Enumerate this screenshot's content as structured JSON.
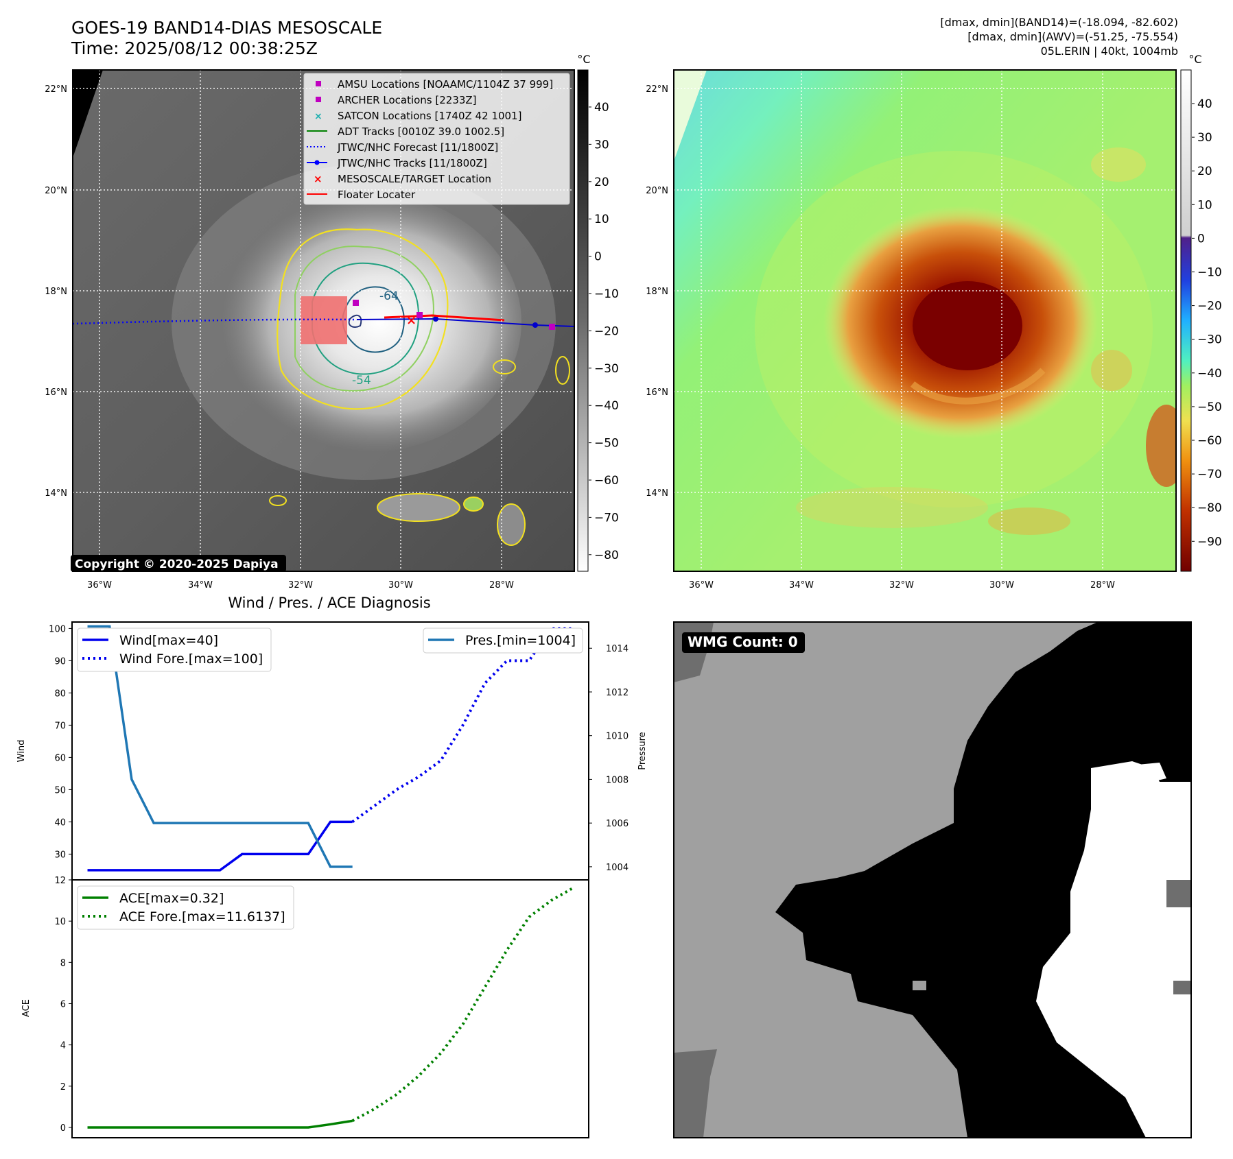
{
  "header": {
    "title_line1": "GOES-19 BAND14-DIAS MESOSCALE",
    "title_line2": "Time: 2025/08/12 00:38:25Z",
    "info_line1": "[dmax, dmin](BAND14)=(-18.094, -82.602)",
    "info_line2": "[dmax, dmin](AWV)=(-51.25, -75.554)",
    "info_line3": "05L.ERIN | 40kt, 1004mb"
  },
  "maps": {
    "lat_ticks": [
      "22°N",
      "20°N",
      "18°N",
      "16°N",
      "14°N"
    ],
    "lon_ticks": [
      "36°W",
      "34°W",
      "32°W",
      "30°W",
      "28°W"
    ],
    "copyright": "Copyright © 2020-2025 Dapiya",
    "contour_labels": [
      "-64",
      "-54"
    ],
    "legend": [
      {
        "label": "AMSU Locations [NOAAMC/1104Z 37 999]",
        "marker": "square",
        "color": "#c000c0"
      },
      {
        "label": "ARCHER Locations [2233Z]",
        "marker": "square",
        "color": "#c000c0"
      },
      {
        "label": "SATCON Locations [1740Z 42 1001]",
        "marker": "x",
        "color": "#20b0b0"
      },
      {
        "label": "ADT Tracks [0010Z 39.0 1002.5]",
        "marker": "line",
        "color": "#008000"
      },
      {
        "label": "JTWC/NHC Forecast [11/1800Z]",
        "marker": "dotted",
        "color": "#0000ff"
      },
      {
        "label": "JTWC/NHC Tracks [11/1800Z]",
        "marker": "line-dot",
        "color": "#0000ff"
      },
      {
        "label": "MESOSCALE/TARGET Location",
        "marker": "x",
        "color": "#ff0000"
      },
      {
        "label": "Floater Locater",
        "marker": "line",
        "color": "#ff0000"
      }
    ],
    "colorbar1": {
      "unit": "°C",
      "ticks": [
        "40",
        "30",
        "20",
        "10",
        "0",
        "−10",
        "−20",
        "−30",
        "−40",
        "−50",
        "−60",
        "−70",
        "−80"
      ]
    },
    "colorbar2": {
      "unit": "°C",
      "ticks": [
        "40",
        "30",
        "20",
        "10",
        "0",
        "−10",
        "−20",
        "−30",
        "−40",
        "−50",
        "−60",
        "−70",
        "−80",
        "−90"
      ]
    }
  },
  "wmg": {
    "label": "WMG Count: 0"
  },
  "chart_data": [
    {
      "type": "line",
      "title": "Wind / Pres. / ACE Diagnosis",
      "ylabel": "Wind",
      "y2label": "Pressure",
      "ylim": [
        22,
        102
      ],
      "y2lim": [
        1003.4,
        1015.2
      ],
      "yticks": [
        "100",
        "90",
        "80",
        "70",
        "60",
        "50",
        "40",
        "30"
      ],
      "y2ticks": [
        "1014",
        "1012",
        "1010",
        "1008",
        "1006",
        "1004"
      ],
      "x": [
        0,
        1,
        2,
        3,
        4,
        5,
        6,
        7,
        8,
        9,
        10,
        11,
        12,
        13,
        14,
        15,
        16,
        17,
        18,
        19,
        20,
        21,
        22
      ],
      "series": [
        {
          "name": "Wind[max=40]",
          "axis": "left",
          "style": "solid",
          "color": "#0000ee",
          "x": [
            0,
            1,
            2,
            3,
            4,
            5,
            6,
            7,
            8,
            9,
            10,
            11,
            12
          ],
          "values": [
            25,
            25,
            25,
            25,
            25,
            25,
            25,
            30,
            30,
            30,
            30,
            40,
            40
          ]
        },
        {
          "name": "Wind Fore.[max=100]",
          "axis": "left",
          "style": "dotted",
          "color": "#0000ee",
          "x": [
            12,
            13,
            14,
            15,
            16,
            17,
            18,
            19,
            20,
            21,
            22
          ],
          "values": [
            40,
            45,
            50,
            54,
            59,
            70,
            83,
            90,
            90,
            100,
            100
          ]
        },
        {
          "name": "Pres.[min=1004]",
          "axis": "right",
          "style": "solid",
          "color": "#1f77b4",
          "x": [
            0,
            1,
            2,
            3,
            4,
            5,
            6,
            7,
            8,
            9,
            10,
            11,
            12
          ],
          "values": [
            1015,
            1015,
            1008,
            1006,
            1006,
            1006,
            1006,
            1006,
            1006,
            1006,
            1006,
            1004,
            1004
          ]
        }
      ]
    },
    {
      "type": "line",
      "ylabel": "ACE",
      "ylim": [
        -0.5,
        12
      ],
      "yticks": [
        "12",
        "10",
        "8",
        "6",
        "4",
        "2",
        "0"
      ],
      "x": [
        0,
        1,
        2,
        3,
        4,
        5,
        6,
        7,
        8,
        9,
        10,
        11,
        12,
        13,
        14,
        15,
        16,
        17,
        18,
        19,
        20,
        21,
        22
      ],
      "series": [
        {
          "name": "ACE[max=0.32]",
          "style": "solid",
          "color": "#008000",
          "x": [
            0,
            1,
            2,
            3,
            4,
            5,
            6,
            7,
            8,
            9,
            10,
            11,
            12
          ],
          "values": [
            0,
            0,
            0,
            0,
            0,
            0,
            0,
            0,
            0,
            0,
            0,
            0.15,
            0.32
          ]
        },
        {
          "name": "ACE Fore.[max=11.6137]",
          "style": "dotted",
          "color": "#008000",
          "x": [
            12,
            13,
            14,
            15,
            16,
            17,
            18,
            19,
            20,
            21,
            22
          ],
          "values": [
            0.32,
            0.9,
            1.6,
            2.5,
            3.6,
            5.0,
            6.8,
            8.6,
            10.2,
            11.0,
            11.6137
          ]
        }
      ]
    }
  ]
}
